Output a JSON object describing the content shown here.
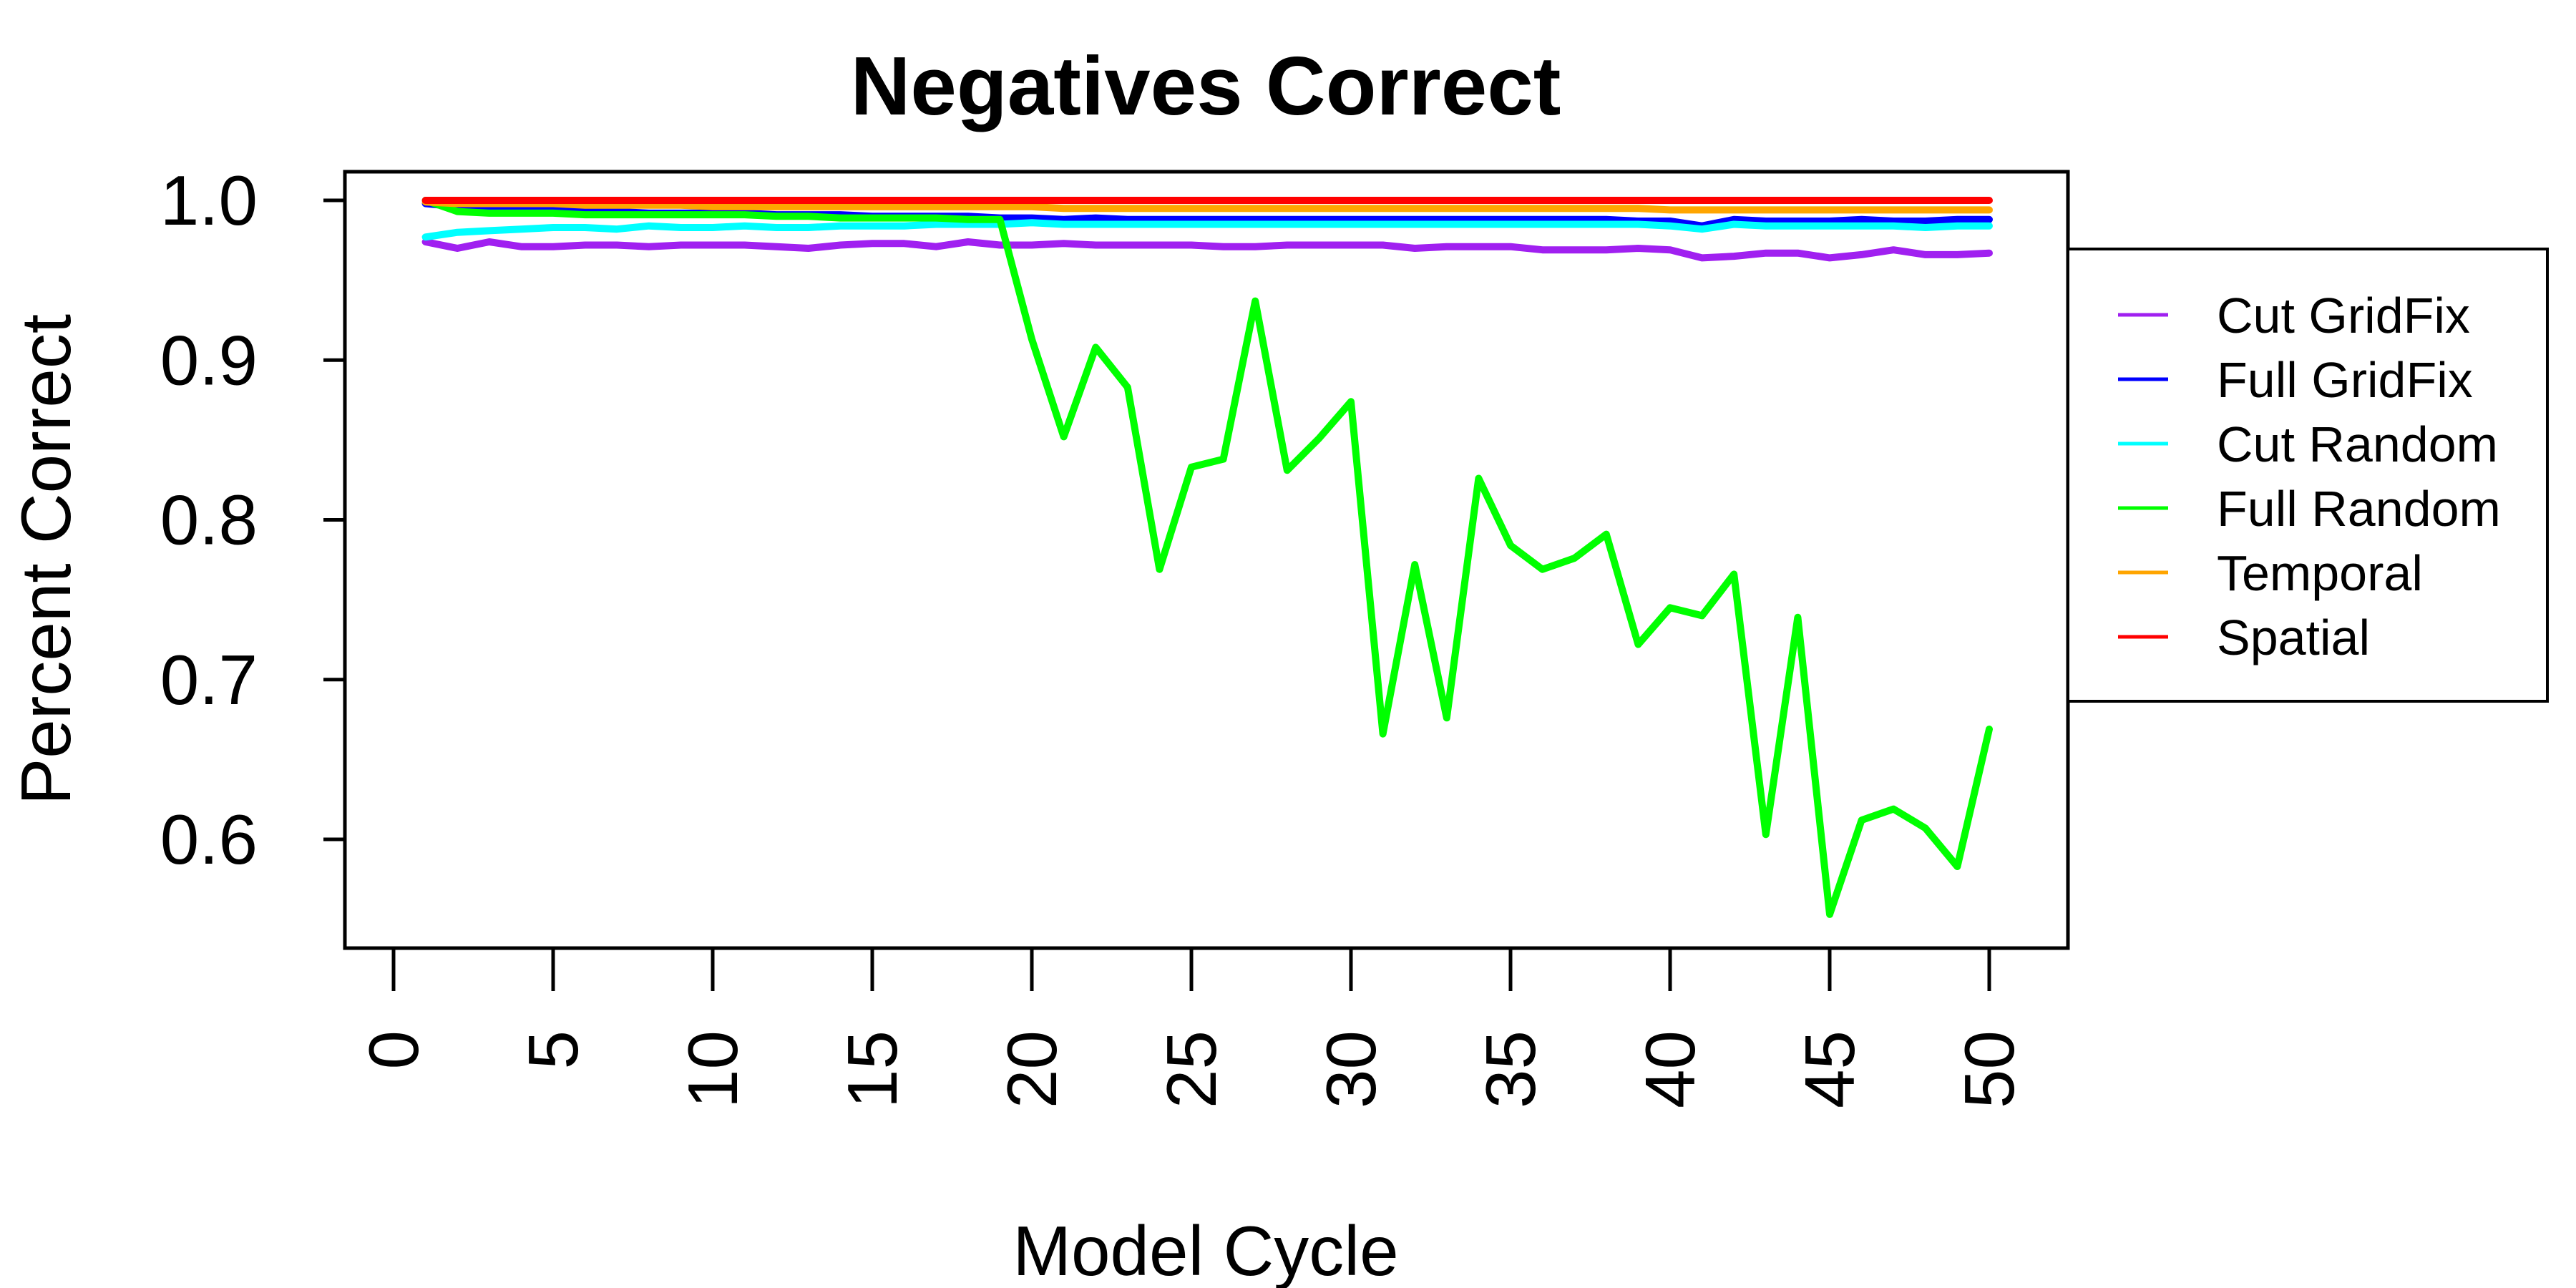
{
  "chart_data": {
    "type": "line",
    "title": "Negatives Correct",
    "xlabel": "Model Cycle",
    "ylabel": "Percent Correct",
    "xlim": [
      0,
      50
    ],
    "ylim": [
      0.55,
      1.0
    ],
    "xticks": [
      "0",
      "5",
      "10",
      "15",
      "20",
      "25",
      "30",
      "35",
      "40",
      "45",
      "50"
    ],
    "yticks": [
      "0.6",
      "0.7",
      "0.8",
      "0.9",
      "1.0"
    ],
    "grid": false,
    "legend_position": "right",
    "x": [
      1,
      2,
      3,
      4,
      5,
      6,
      7,
      8,
      9,
      10,
      11,
      12,
      13,
      14,
      15,
      16,
      17,
      18,
      19,
      20,
      21,
      22,
      23,
      24,
      25,
      26,
      27,
      28,
      29,
      30,
      31,
      32,
      33,
      34,
      35,
      36,
      37,
      38,
      39,
      40,
      41,
      42,
      43,
      44,
      45,
      46,
      47,
      48,
      49,
      50
    ],
    "series": [
      {
        "name": "Cut GridFix",
        "color": "#A020F0",
        "values": [
          0.974,
          0.97,
          0.974,
          0.971,
          0.971,
          0.972,
          0.972,
          0.971,
          0.972,
          0.972,
          0.972,
          0.971,
          0.97,
          0.972,
          0.973,
          0.973,
          0.971,
          0.974,
          0.972,
          0.972,
          0.973,
          0.972,
          0.972,
          0.972,
          0.972,
          0.971,
          0.971,
          0.972,
          0.972,
          0.972,
          0.972,
          0.97,
          0.971,
          0.971,
          0.971,
          0.969,
          0.969,
          0.969,
          0.97,
          0.969,
          0.964,
          0.965,
          0.967,
          0.967,
          0.964,
          0.966,
          0.969,
          0.966,
          0.966,
          0.967
        ]
      },
      {
        "name": "Full GridFix",
        "color": "#0000FF",
        "values": [
          0.998,
          0.996,
          0.995,
          0.994,
          0.994,
          0.993,
          0.993,
          0.992,
          0.992,
          0.992,
          0.992,
          0.991,
          0.991,
          0.991,
          0.99,
          0.99,
          0.99,
          0.99,
          0.989,
          0.989,
          0.988,
          0.989,
          0.988,
          0.988,
          0.988,
          0.988,
          0.988,
          0.988,
          0.988,
          0.988,
          0.988,
          0.988,
          0.988,
          0.988,
          0.988,
          0.988,
          0.988,
          0.988,
          0.987,
          0.987,
          0.984,
          0.988,
          0.987,
          0.987,
          0.987,
          0.988,
          0.987,
          0.987,
          0.988,
          0.988
        ]
      },
      {
        "name": "Cut Random",
        "color": "#00FFFF",
        "values": [
          0.977,
          0.98,
          0.981,
          0.982,
          0.983,
          0.983,
          0.982,
          0.984,
          0.983,
          0.983,
          0.984,
          0.983,
          0.983,
          0.984,
          0.984,
          0.984,
          0.985,
          0.985,
          0.985,
          0.986,
          0.985,
          0.985,
          0.985,
          0.985,
          0.985,
          0.985,
          0.985,
          0.985,
          0.985,
          0.985,
          0.985,
          0.985,
          0.985,
          0.985,
          0.985,
          0.985,
          0.985,
          0.985,
          0.985,
          0.984,
          0.982,
          0.985,
          0.984,
          0.984,
          0.984,
          0.984,
          0.984,
          0.983,
          0.984,
          0.984
        ]
      },
      {
        "name": "Full Random",
        "color": "#00FF00",
        "values": [
          1.0,
          0.993,
          0.992,
          0.992,
          0.992,
          0.991,
          0.991,
          0.991,
          0.991,
          0.991,
          0.991,
          0.99,
          0.99,
          0.989,
          0.989,
          0.989,
          0.989,
          0.988,
          0.988,
          0.913,
          0.852,
          0.908,
          0.883,
          0.769,
          0.833,
          0.838,
          0.937,
          0.831,
          0.851,
          0.874,
          0.666,
          0.772,
          0.676,
          0.826,
          0.784,
          0.769,
          0.776,
          0.791,
          0.722,
          0.745,
          0.74,
          0.766,
          0.603,
          0.739,
          0.553,
          0.612,
          0.619,
          0.607,
          0.583,
          0.669
        ]
      },
      {
        "name": "Temporal",
        "color": "#FFA500",
        "values": [
          0.999,
          0.998,
          0.998,
          0.998,
          0.998,
          0.997,
          0.997,
          0.997,
          0.997,
          0.996,
          0.996,
          0.996,
          0.996,
          0.996,
          0.996,
          0.996,
          0.996,
          0.996,
          0.996,
          0.996,
          0.995,
          0.995,
          0.995,
          0.995,
          0.995,
          0.995,
          0.995,
          0.995,
          0.995,
          0.995,
          0.995,
          0.995,
          0.995,
          0.995,
          0.995,
          0.995,
          0.995,
          0.995,
          0.995,
          0.994,
          0.994,
          0.994,
          0.994,
          0.994,
          0.994,
          0.994,
          0.994,
          0.994,
          0.994,
          0.994
        ]
      },
      {
        "name": "Spatial",
        "color": "#FF0000",
        "values": [
          1.0,
          1.0,
          1.0,
          1.0,
          1.0,
          1.0,
          1.0,
          1.0,
          1.0,
          1.0,
          1.0,
          1.0,
          1.0,
          1.0,
          1.0,
          1.0,
          1.0,
          1.0,
          1.0,
          1.0,
          1.0,
          1.0,
          1.0,
          1.0,
          1.0,
          1.0,
          1.0,
          1.0,
          1.0,
          1.0,
          1.0,
          1.0,
          1.0,
          1.0,
          1.0,
          1.0,
          1.0,
          1.0,
          1.0,
          1.0,
          1.0,
          1.0,
          1.0,
          1.0,
          1.0,
          1.0,
          1.0,
          1.0,
          1.0,
          1.0
        ]
      }
    ]
  }
}
